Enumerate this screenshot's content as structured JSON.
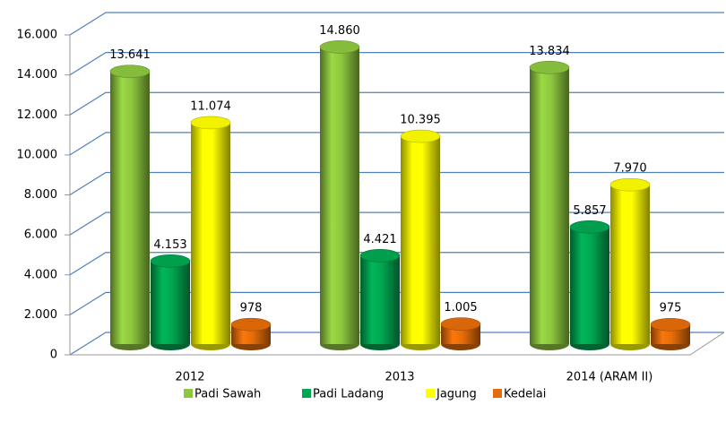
{
  "chart_data": {
    "type": "bar3d",
    "categories": [
      "2012",
      "2013",
      "2014 (ARAM II)"
    ],
    "series": [
      {
        "name": "Padi Sawah",
        "color": "#8dc63f",
        "values": [
          13641,
          14860,
          13834
        ],
        "value_labels": [
          "13.641",
          "14.860",
          "13.834"
        ]
      },
      {
        "name": "Padi Ladang",
        "color": "#00a651",
        "values": [
          4153,
          4421,
          5857
        ],
        "value_labels": [
          "4.153",
          "4.421",
          "5.857"
        ]
      },
      {
        "name": "Jagung",
        "color": "#ffff00",
        "values": [
          11074,
          10395,
          7970
        ],
        "value_labels": [
          "11.074",
          "10.395",
          "7.970"
        ]
      },
      {
        "name": "Kedelai",
        "color": "#e46c0a",
        "values": [
          978,
          1005,
          975
        ],
        "value_labels": [
          "978",
          "1.005",
          "975"
        ]
      }
    ],
    "ylim": [
      0,
      16000
    ],
    "yticks": [
      0,
      {
        "value": 2000,
        "label": "2.000"
      },
      {
        "value": 4000,
        "label": "4.000"
      },
      {
        "value": 6000,
        "label": "6.000"
      },
      {
        "value": 8000,
        "label": "8.000"
      },
      {
        "value": 10000,
        "label": "10.000"
      },
      {
        "value": 12000,
        "label": "12.000"
      },
      {
        "value": 14000,
        "label": "14.000"
      },
      {
        "value": 16000,
        "label": "16.000"
      }
    ],
    "grid": true,
    "legend": "bottom"
  }
}
